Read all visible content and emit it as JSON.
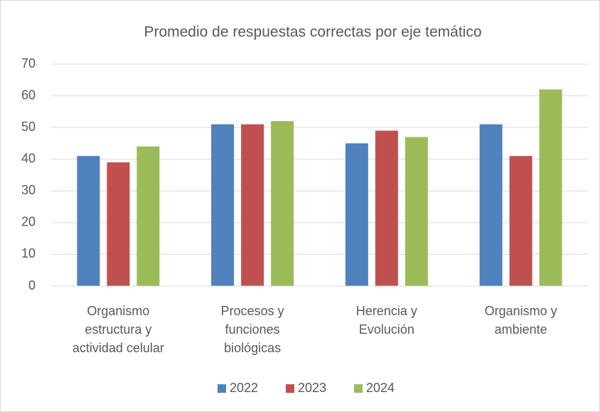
{
  "chart_data": {
    "type": "bar",
    "title": "Promedio de respuestas correctas por eje temático",
    "categories": [
      "Organismo estructura y actividad celular",
      "Procesos y funciones biológicas",
      "Herencia y Evolución",
      "Organismo y ambiente"
    ],
    "series": [
      {
        "name": "2022",
        "color": "#4f81bd",
        "values": [
          41,
          51,
          45,
          51
        ]
      },
      {
        "name": "2023",
        "color": "#c0504d",
        "values": [
          39,
          51,
          49,
          41
        ]
      },
      {
        "name": "2024",
        "color": "#9bbb59",
        "values": [
          44,
          52,
          47,
          62
        ]
      }
    ],
    "ylim": [
      0,
      70
    ],
    "yticks": [
      0,
      10,
      20,
      30,
      40,
      50,
      60,
      70
    ],
    "grid": true,
    "legend": "bottom"
  }
}
